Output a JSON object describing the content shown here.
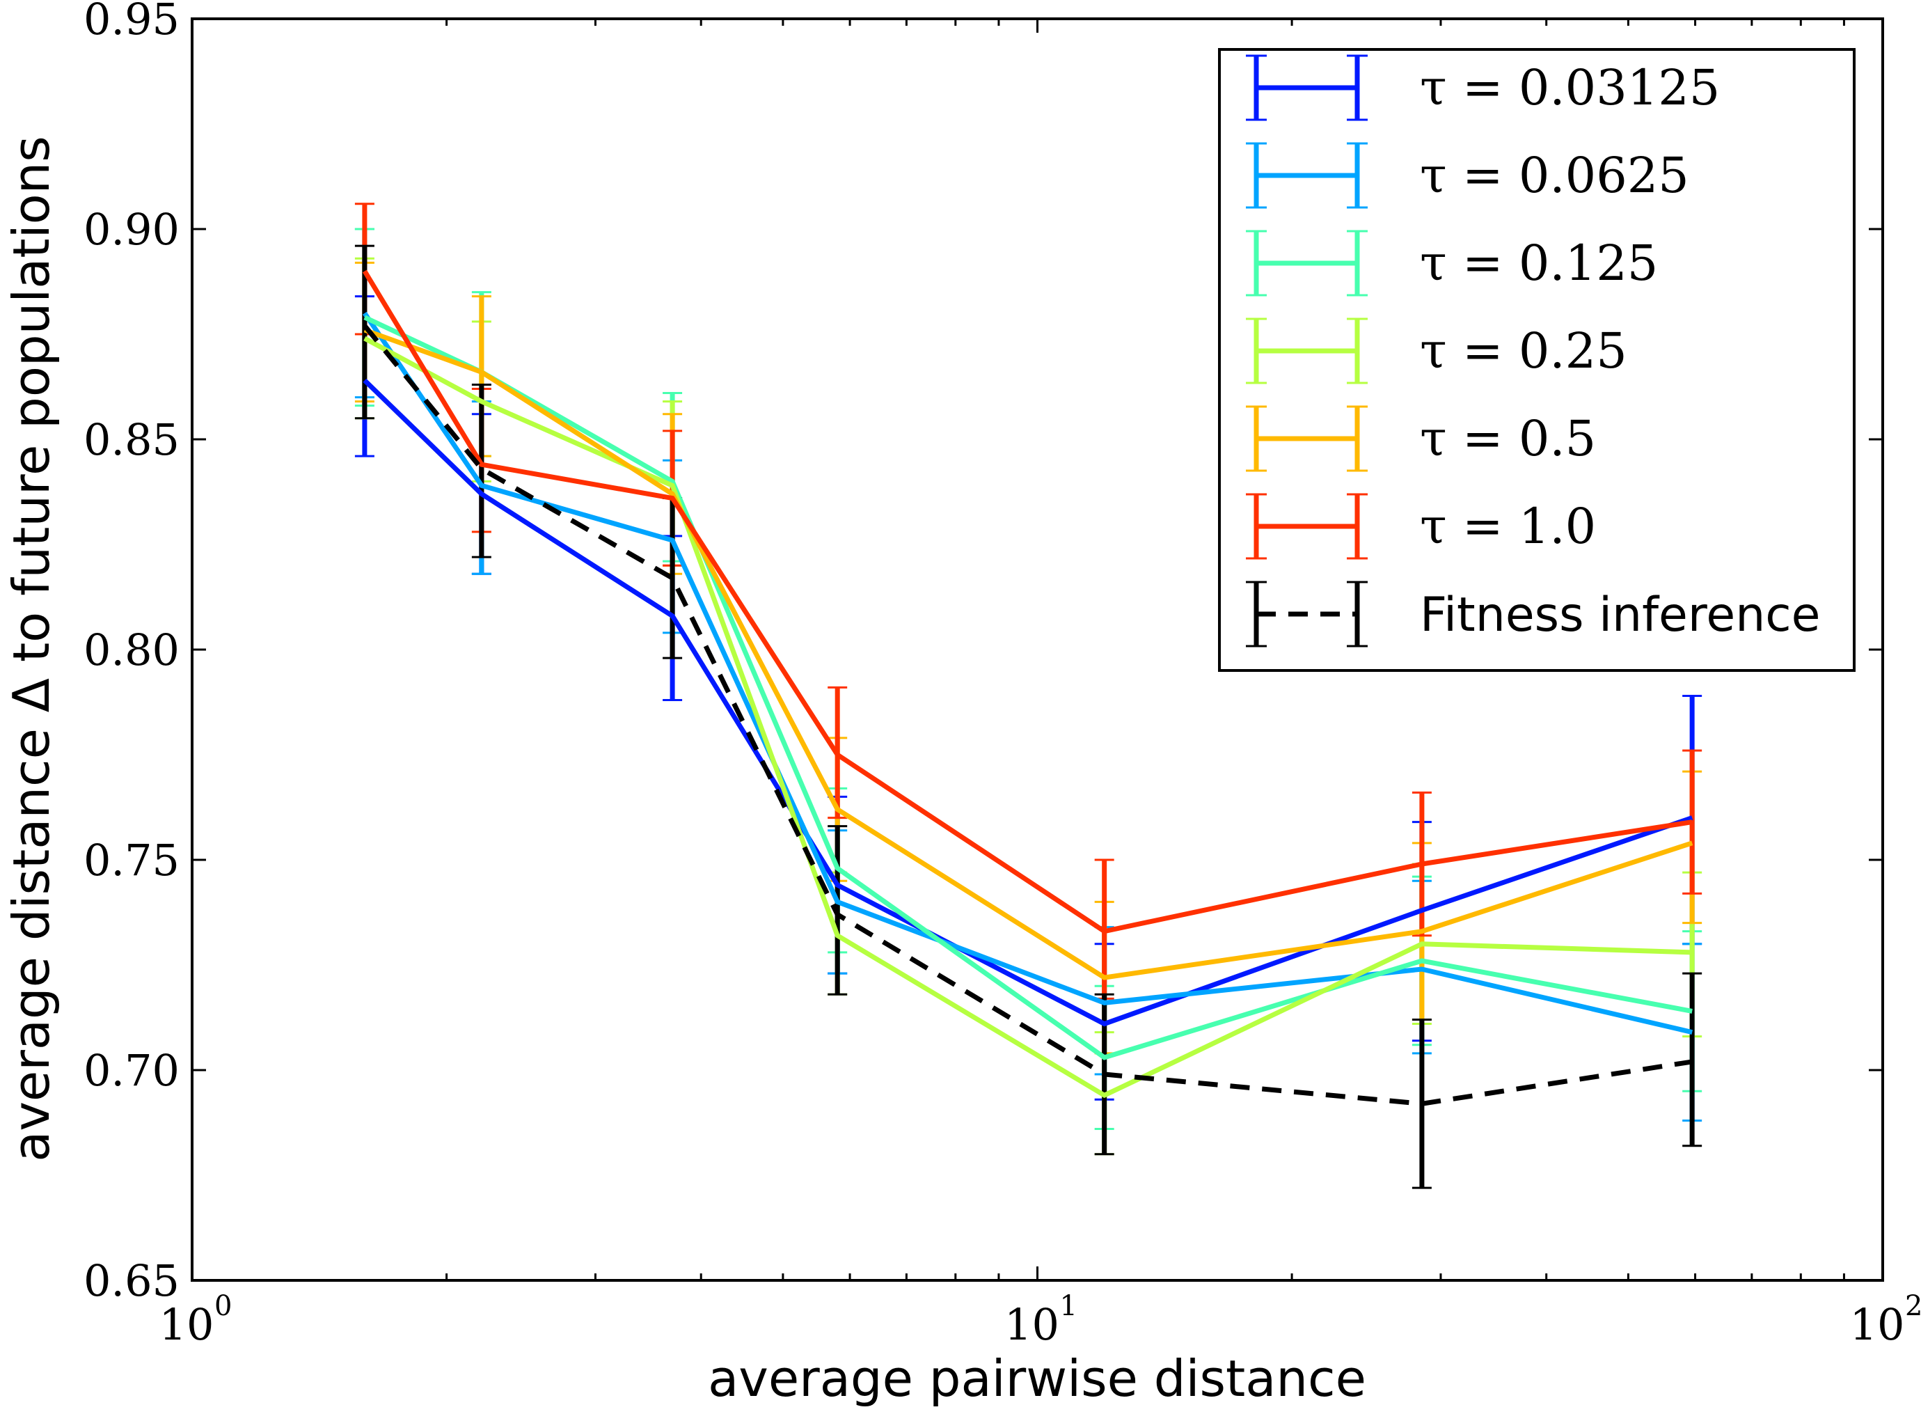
{
  "chart_data": {
    "type": "line",
    "title": "",
    "xlabel": "average pairwise distance",
    "ylabel": "average distance Δ to future populations",
    "xscale": "log",
    "xlim": [
      1,
      100
    ],
    "ylim": [
      0.65,
      0.95
    ],
    "x_ticks": [
      {
        "value": 1,
        "base": "10",
        "exp": "0"
      },
      {
        "value": 10,
        "base": "10",
        "exp": "1"
      },
      {
        "value": 100,
        "base": "10",
        "exp": "2"
      }
    ],
    "y_ticks": [
      "0.65",
      "0.70",
      "0.75",
      "0.80",
      "0.85",
      "0.90",
      "0.95"
    ],
    "grid": false,
    "legend_position": "top-right",
    "x": [
      1.6,
      2.2,
      3.7,
      5.8,
      12.0,
      28.5,
      59.5
    ],
    "series": [
      {
        "name": "τ = 0.03125",
        "color": "#0019ff",
        "dashed": false,
        "values": [
          0.864,
          0.837,
          0.808,
          0.744,
          0.711,
          0.738,
          0.76
        ],
        "err_low": [
          0.846,
          0.818,
          0.788,
          0.723,
          0.693,
          0.707,
          0.73
        ],
        "err_high": [
          0.884,
          0.856,
          0.827,
          0.765,
          0.73,
          0.759,
          0.789
        ]
      },
      {
        "name": "τ = 0.0625",
        "color": "#00a4ff",
        "dashed": false,
        "values": [
          0.88,
          0.839,
          0.826,
          0.74,
          0.716,
          0.724,
          0.709
        ],
        "err_low": [
          0.86,
          0.818,
          0.804,
          0.723,
          0.699,
          0.704,
          0.688
        ],
        "err_high": [
          0.9,
          0.859,
          0.845,
          0.757,
          0.734,
          0.745,
          0.73
        ]
      },
      {
        "name": "τ = 0.125",
        "color": "#47ffaf",
        "dashed": false,
        "values": [
          0.879,
          0.866,
          0.84,
          0.748,
          0.703,
          0.726,
          0.714
        ],
        "err_low": [
          0.858,
          0.846,
          0.821,
          0.728,
          0.686,
          0.706,
          0.695
        ],
        "err_high": [
          0.9,
          0.885,
          0.861,
          0.767,
          0.72,
          0.746,
          0.733
        ]
      },
      {
        "name": "τ = 0.25",
        "color": "#b6ff41",
        "dashed": false,
        "values": [
          0.874,
          0.859,
          0.839,
          0.732,
          0.694,
          0.73,
          0.728
        ],
        "err_low": [
          0.855,
          0.84,
          0.82,
          0.718,
          0.68,
          0.711,
          0.708
        ],
        "err_high": [
          0.893,
          0.878,
          0.859,
          0.747,
          0.709,
          0.749,
          0.747
        ]
      },
      {
        "name": "τ = 0.5",
        "color": "#ffb900",
        "dashed": false,
        "values": [
          0.876,
          0.866,
          0.837,
          0.762,
          0.722,
          0.733,
          0.754
        ],
        "err_low": [
          0.859,
          0.846,
          0.818,
          0.745,
          0.704,
          0.712,
          0.735
        ],
        "err_high": [
          0.892,
          0.884,
          0.856,
          0.779,
          0.74,
          0.754,
          0.771
        ]
      },
      {
        "name": "τ = 1.0",
        "color": "#ff3000",
        "dashed": false,
        "values": [
          0.89,
          0.844,
          0.836,
          0.775,
          0.733,
          0.749,
          0.759
        ],
        "err_low": [
          0.875,
          0.828,
          0.82,
          0.76,
          0.717,
          0.732,
          0.742
        ],
        "err_high": [
          0.906,
          0.862,
          0.852,
          0.791,
          0.75,
          0.766,
          0.776
        ]
      },
      {
        "name": "Fitness inference",
        "color": "#000000",
        "dashed": true,
        "values": [
          0.877,
          0.843,
          0.817,
          0.737,
          0.699,
          0.692,
          0.702
        ],
        "err_low": [
          0.855,
          0.822,
          0.798,
          0.718,
          0.68,
          0.672,
          0.682
        ],
        "err_high": [
          0.896,
          0.863,
          0.836,
          0.758,
          0.718,
          0.712,
          0.723
        ]
      }
    ]
  }
}
